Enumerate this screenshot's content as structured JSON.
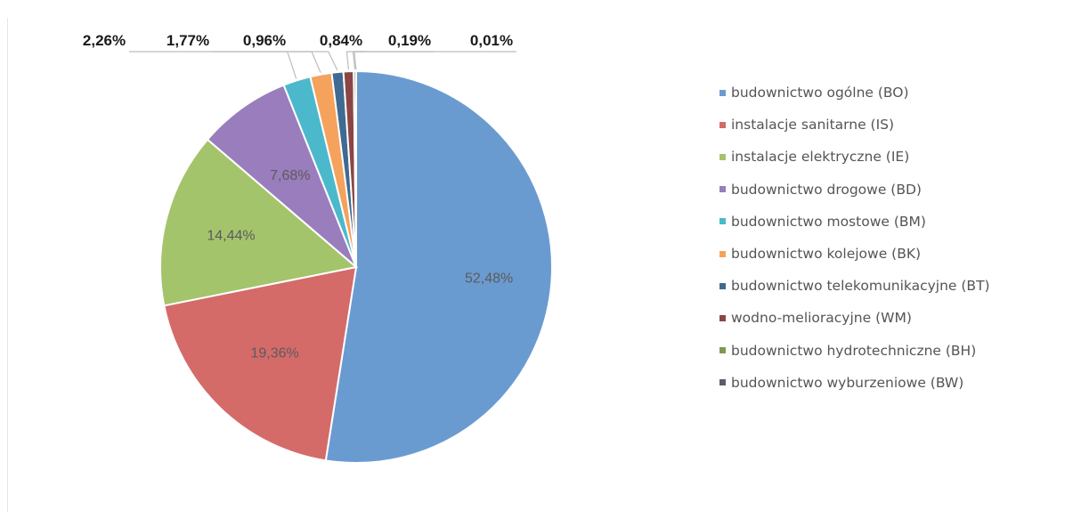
{
  "chart_data": {
    "type": "pie",
    "title": "",
    "start_angle_deg": 0,
    "direction": "clockwise",
    "data_label_format": "percent, comma decimal separator",
    "legend_position": "right",
    "slices": [
      {
        "category": "budownictwo ogólne (BO)",
        "value": 52.48,
        "label": "52,48%",
        "color": "#6a9bd0",
        "label_style": "inside"
      },
      {
        "category": "instalacje sanitarne (IS)",
        "value": 19.36,
        "label": "19,36%",
        "color": "#d46b69",
        "label_style": "inside"
      },
      {
        "category": "instalacje elektryczne (IE)",
        "value": 14.44,
        "label": "14,44%",
        "color": "#a4c46c",
        "label_style": "inside"
      },
      {
        "category": "budownictwo drogowe (BD)",
        "value": 7.68,
        "label": "7,68%",
        "color": "#9a7dbc",
        "label_style": "inside"
      },
      {
        "category": "budownictwo mostowe (BM)",
        "value": 2.26,
        "label": "2,26%",
        "color": "#4cb8cc",
        "label_style": "outside"
      },
      {
        "category": "budownictwo kolejowe (BK)",
        "value": 1.77,
        "label": "1,77%",
        "color": "#f5a25d",
        "label_style": "outside"
      },
      {
        "category": "budownictwo telekomunikacyjne (BT)",
        "value": 0.96,
        "label": "0,96%",
        "color": "#3f6a91",
        "label_style": "outside"
      },
      {
        "category": "wodno-melioracyjne (WM)",
        "value": 0.84,
        "label": "0,84%",
        "color": "#8c4545",
        "label_style": "outside"
      },
      {
        "category": "budownictwo hydrotechniczne (BH)",
        "value": 0.19,
        "label": "0,19%",
        "color": "#7f9a4e",
        "label_style": "outside"
      },
      {
        "category": "budownictwo wyburzeniowe (BW)",
        "value": 0.01,
        "label": "0,01%",
        "color": "#5f5a66",
        "label_style": "outside"
      }
    ],
    "legend": [
      "budownictwo ogólne (BO)",
      "instalacje sanitarne (IS)",
      "instalacje elektryczne (IE)",
      "budownictwo drogowe (BD)",
      "budownictwo mostowe (BM)",
      "budownictwo kolejowe (BK)",
      "budownictwo telekomunikacyjne (BT)",
      "wodno-melioracyjne (WM)",
      "budownictwo hydrotechniczne (BH)",
      "budownictwo wyburzeniowe (BW)"
    ]
  }
}
